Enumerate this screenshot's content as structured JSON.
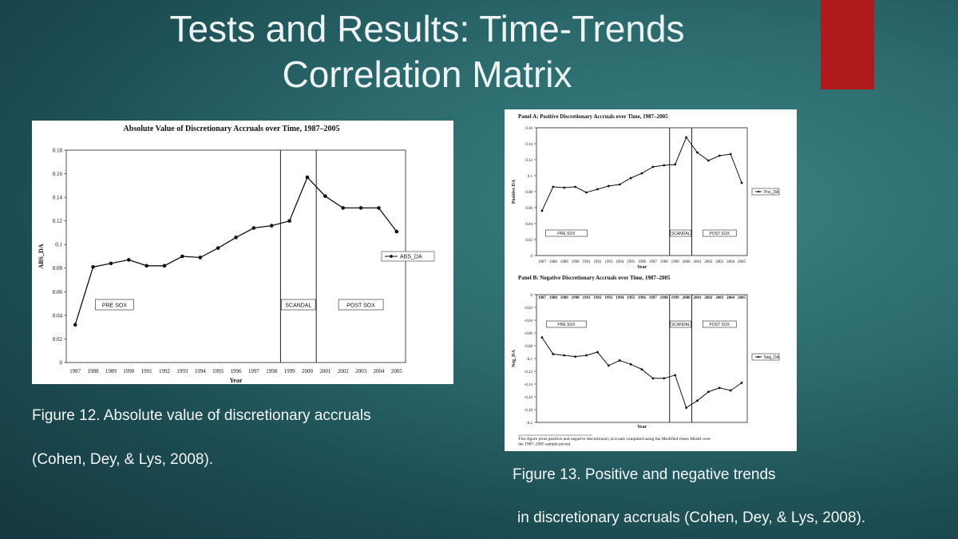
{
  "slide": {
    "title_line1": "Tests and Results: Time-Trends",
    "title_line2": "Correlation Matrix",
    "accent_color": "#b11a1c"
  },
  "figure12_caption": {
    "line1": "Figure 12. Absolute value of discretionary accruals",
    "line2": "(Cohen, Dey, & Lys, 2008)."
  },
  "figure13_caption": {
    "line1": "Figure 13. Positive and negative trends",
    "line2": "in discretionary accruals (Cohen, Dey, & Lys, 2008)."
  },
  "figure13_note": "This figure plots positive and negative discretionary accruals computed using the Modified Jones Model over the 1987–2005 sample period.",
  "chart_data": [
    {
      "type": "line",
      "title": "Absolute Value of Discretionary Accruals over Time, 1987–2005",
      "xlabel": "Year",
      "ylabel": "ABS_DA",
      "x": [
        "1987",
        "1988",
        "1989",
        "1990",
        "1991",
        "1992",
        "1993",
        "1994",
        "1995",
        "1996",
        "1997",
        "1998",
        "1999",
        "2000",
        "2001",
        "2002",
        "2003",
        "2004",
        "2005"
      ],
      "yticks": [
        "0",
        "0.02",
        "0.04",
        "0.06",
        "0.08",
        "0.1",
        "0.12",
        "0.14",
        "0.16",
        "0.18"
      ],
      "ylim": [
        0,
        0.18
      ],
      "series": [
        {
          "name": "ABS_DA",
          "values": [
            0.032,
            0.081,
            0.084,
            0.087,
            0.082,
            0.082,
            0.09,
            0.089,
            0.097,
            0.106,
            0.114,
            0.116,
            0.12,
            0.157,
            0.141,
            0.131,
            0.131,
            0.131,
            0.111
          ]
        }
      ],
      "regions": [
        "PRE SOX",
        "SCANDAL",
        "POST SOX"
      ],
      "legend": "right"
    },
    {
      "type": "line",
      "title": "Panel A: Positive Discretionary Accruals over Time, 1987–2005",
      "xlabel": "Year",
      "ylabel": "Positive DA",
      "x": [
        "1987",
        "1988",
        "1989",
        "1990",
        "1991",
        "1992",
        "1993",
        "1994",
        "1995",
        "1996",
        "1997",
        "1998",
        "1999",
        "2000",
        "2001",
        "2002",
        "2003",
        "2004",
        "2005"
      ],
      "yticks": [
        "0",
        "0.02",
        "0.04",
        "0.06",
        "0.08",
        "0.1",
        "0.12",
        "0.14",
        "0.16"
      ],
      "ylim": [
        0,
        0.16
      ],
      "series": [
        {
          "name": "Pos_DA",
          "values": [
            0.056,
            0.086,
            0.085,
            0.086,
            0.079,
            0.083,
            0.087,
            0.089,
            0.097,
            0.103,
            0.111,
            0.113,
            0.114,
            0.148,
            0.129,
            0.119,
            0.125,
            0.127,
            0.091
          ]
        }
      ],
      "regions": [
        "PRE SOX",
        "SCANDAL",
        "POST SOX"
      ],
      "legend": "right"
    },
    {
      "type": "line",
      "title": "Panel B: Negative Discretionary Accruals over Time, 1987–2005",
      "xlabel": "Year",
      "ylabel": "Neg_DA",
      "x": [
        "1987",
        "1988",
        "1989",
        "1990",
        "1991",
        "1992",
        "1993",
        "1994",
        "1995",
        "1996",
        "1997",
        "1998",
        "1999",
        "2000",
        "2001",
        "2002",
        "2003",
        "2004",
        "2005"
      ],
      "yticks": [
        "0",
        "-0.02",
        "-0.04",
        "-0.06",
        "-0.08",
        "-0.1",
        "-0.12",
        "-0.14",
        "-0.16",
        "-0.18",
        "-0.2"
      ],
      "ylim": [
        -0.2,
        0
      ],
      "series": [
        {
          "name": "Neg_DA",
          "values": [
            -0.067,
            -0.093,
            -0.095,
            -0.097,
            -0.095,
            -0.09,
            -0.111,
            -0.103,
            -0.109,
            -0.117,
            -0.131,
            -0.131,
            -0.126,
            -0.177,
            -0.166,
            -0.152,
            -0.146,
            -0.15,
            -0.138
          ]
        }
      ],
      "regions": [
        "PRE SOX",
        "SCANDAL",
        "POST SOX"
      ],
      "legend": "right"
    }
  ]
}
